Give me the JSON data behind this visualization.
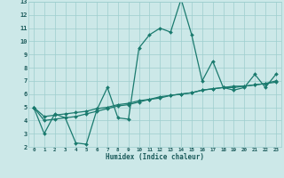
{
  "xlabel": "Humidex (Indice chaleur)",
  "x_values": [
    0,
    1,
    2,
    3,
    4,
    5,
    6,
    7,
    8,
    9,
    10,
    11,
    12,
    13,
    14,
    15,
    16,
    17,
    18,
    19,
    20,
    21,
    22,
    23
  ],
  "line1_y": [
    5.0,
    3.0,
    4.5,
    4.2,
    2.3,
    2.2,
    4.8,
    6.5,
    4.2,
    4.1,
    9.5,
    10.5,
    11.0,
    10.7,
    13.2,
    10.5,
    7.0,
    8.5,
    6.5,
    6.3,
    6.5,
    7.5,
    6.5,
    7.5
  ],
  "line2_y": [
    5.0,
    4.0,
    4.1,
    4.2,
    4.3,
    4.5,
    4.7,
    4.9,
    5.1,
    5.2,
    5.4,
    5.6,
    5.7,
    5.9,
    6.0,
    6.1,
    6.3,
    6.4,
    6.5,
    6.6,
    6.6,
    6.7,
    6.8,
    6.9
  ],
  "line3_y": [
    5.0,
    4.3,
    4.4,
    4.5,
    4.6,
    4.7,
    4.9,
    5.0,
    5.2,
    5.3,
    5.5,
    5.6,
    5.8,
    5.9,
    6.0,
    6.1,
    6.3,
    6.4,
    6.5,
    6.5,
    6.6,
    6.7,
    6.8,
    7.0
  ],
  "ylim": [
    2,
    13
  ],
  "xlim": [
    -0.5,
    23.5
  ],
  "yticks": [
    2,
    3,
    4,
    5,
    6,
    7,
    8,
    9,
    10,
    11,
    12,
    13
  ],
  "xticks": [
    0,
    1,
    2,
    3,
    4,
    5,
    6,
    7,
    8,
    9,
    10,
    11,
    12,
    13,
    14,
    15,
    16,
    17,
    18,
    19,
    20,
    21,
    22,
    23
  ],
  "line_color": "#1a7a6e",
  "bg_color": "#cce8e8",
  "grid_color": "#9ecece",
  "tick_color": "#1a5a5a",
  "label_color": "#1a5a5a",
  "marker": "D",
  "marker_size": 2.0,
  "line_width": 0.9
}
